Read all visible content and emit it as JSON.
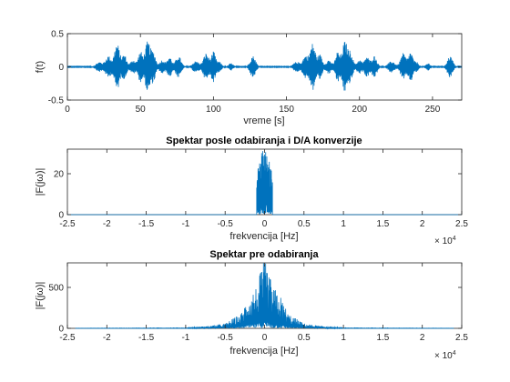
{
  "chart_data": [
    {
      "id": "time",
      "type": "line",
      "title": "",
      "xlabel": "vreme [s]",
      "ylabel": "f(t)",
      "xlim": [
        0,
        270
      ],
      "ylim": [
        -0.5,
        0.5
      ],
      "x_ticks": [
        0,
        50,
        100,
        150,
        200,
        250
      ],
      "y_ticks": [
        -0.5,
        0,
        0.5
      ],
      "x_tick_labels": [
        "0",
        "50",
        "100",
        "150",
        "200",
        "250"
      ],
      "y_tick_labels": [
        "-0.5",
        "0",
        "0.5"
      ],
      "line_color": "#0072BD",
      "grid": false,
      "envelope_bursts": [
        {
          "t": 22,
          "a": 0.07,
          "w": 3
        },
        {
          "t": 28,
          "a": 0.16,
          "w": 2.5
        },
        {
          "t": 34,
          "a": 0.35,
          "w": 2.5
        },
        {
          "t": 39,
          "a": 0.18,
          "w": 2
        },
        {
          "t": 45,
          "a": 0.1,
          "w": 2.5
        },
        {
          "t": 50,
          "a": 0.22,
          "w": 2
        },
        {
          "t": 55,
          "a": 0.38,
          "w": 2.5
        },
        {
          "t": 59,
          "a": 0.2,
          "w": 2
        },
        {
          "t": 65,
          "a": 0.1,
          "w": 2.5
        },
        {
          "t": 70,
          "a": 0.15,
          "w": 2
        },
        {
          "t": 76,
          "a": 0.16,
          "w": 2.5
        },
        {
          "t": 88,
          "a": 0.08,
          "w": 3
        },
        {
          "t": 95,
          "a": 0.2,
          "w": 2.5
        },
        {
          "t": 100,
          "a": 0.22,
          "w": 2
        },
        {
          "t": 104,
          "a": 0.07,
          "w": 2
        },
        {
          "t": 112,
          "a": 0.05,
          "w": 2
        },
        {
          "t": 127,
          "a": 0.16,
          "w": 2.5
        },
        {
          "t": 157,
          "a": 0.07,
          "w": 3
        },
        {
          "t": 163,
          "a": 0.16,
          "w": 2.5
        },
        {
          "t": 168,
          "a": 0.35,
          "w": 2.5
        },
        {
          "t": 173,
          "a": 0.18,
          "w": 2
        },
        {
          "t": 179,
          "a": 0.1,
          "w": 2.5
        },
        {
          "t": 185,
          "a": 0.22,
          "w": 2
        },
        {
          "t": 190,
          "a": 0.38,
          "w": 2.5
        },
        {
          "t": 194,
          "a": 0.2,
          "w": 2
        },
        {
          "t": 200,
          "a": 0.1,
          "w": 2.5
        },
        {
          "t": 205,
          "a": 0.15,
          "w": 2
        },
        {
          "t": 210,
          "a": 0.16,
          "w": 2.5
        },
        {
          "t": 222,
          "a": 0.08,
          "w": 3
        },
        {
          "t": 230,
          "a": 0.2,
          "w": 2.5
        },
        {
          "t": 235,
          "a": 0.22,
          "w": 2
        },
        {
          "t": 239,
          "a": 0.07,
          "w": 2
        },
        {
          "t": 247,
          "a": 0.05,
          "w": 2
        },
        {
          "t": 262,
          "a": 0.16,
          "w": 2.5
        }
      ]
    },
    {
      "id": "spec-da",
      "type": "line",
      "title": "Spektar posle odabiranja i D/A konverzije",
      "xlabel": "frekvencija [Hz]",
      "ylabel": "|F(jω)|",
      "xlim": [
        -25000,
        25000
      ],
      "ylim": [
        0,
        32
      ],
      "x_ticks": [
        -25000,
        -20000,
        -15000,
        -10000,
        -5000,
        0,
        5000,
        10000,
        15000,
        20000,
        25000
      ],
      "x_tick_labels": [
        "-2.5",
        "-2",
        "-1.5",
        "-1",
        "-0.5",
        "0",
        "0.5",
        "1",
        "1.5",
        "2",
        "2.5"
      ],
      "x_exponent": "× 10",
      "x_exponent_power": "4",
      "y_ticks": [
        0,
        20
      ],
      "y_tick_labels": [
        "0",
        "20"
      ],
      "line_color": "#0072BD",
      "grid": false,
      "band_limit_hz": 1000,
      "peak_envelope": [
        {
          "f": -1000,
          "v": 20
        },
        {
          "f": -700,
          "v": 25
        },
        {
          "f": -300,
          "v": 32
        },
        {
          "f": 0,
          "v": 32
        },
        {
          "f": 300,
          "v": 32
        },
        {
          "f": 700,
          "v": 25
        },
        {
          "f": 1000,
          "v": 20
        }
      ]
    },
    {
      "id": "spec-pre",
      "type": "line",
      "title": "Spektar pre odabiranja",
      "xlabel": "frekvencija [Hz]",
      "ylabel": "|F(jω)|",
      "xlim": [
        -25000,
        25000
      ],
      "ylim": [
        0,
        800
      ],
      "x_ticks": [
        -25000,
        -20000,
        -15000,
        -10000,
        -5000,
        0,
        5000,
        10000,
        15000,
        20000,
        25000
      ],
      "x_tick_labels": [
        "-2.5",
        "-2",
        "-1.5",
        "-1",
        "-0.5",
        "0",
        "0.5",
        "1",
        "1.5",
        "2",
        "2.5"
      ],
      "x_exponent": "× 10",
      "x_exponent_power": "4",
      "y_ticks": [
        0,
        500
      ],
      "y_tick_labels": [
        "0",
        "500"
      ],
      "line_color": "#0072BD",
      "grid": false,
      "data_range_hz": [
        -24000,
        24000
      ],
      "peak_envelope": [
        {
          "f": -24000,
          "v": 2
        },
        {
          "f": -10000,
          "v": 6
        },
        {
          "f": -7000,
          "v": 30
        },
        {
          "f": -5000,
          "v": 60
        },
        {
          "f": -3000,
          "v": 180
        },
        {
          "f": -2000,
          "v": 400
        },
        {
          "f": -1000,
          "v": 520
        },
        {
          "f": -200,
          "v": 800
        },
        {
          "f": 0,
          "v": 800
        },
        {
          "f": 200,
          "v": 800
        },
        {
          "f": 1000,
          "v": 520
        },
        {
          "f": 2000,
          "v": 400
        },
        {
          "f": 3000,
          "v": 180
        },
        {
          "f": 5000,
          "v": 60
        },
        {
          "f": 7000,
          "v": 30
        },
        {
          "f": 10000,
          "v": 6
        },
        {
          "f": 24000,
          "v": 2
        }
      ]
    }
  ]
}
